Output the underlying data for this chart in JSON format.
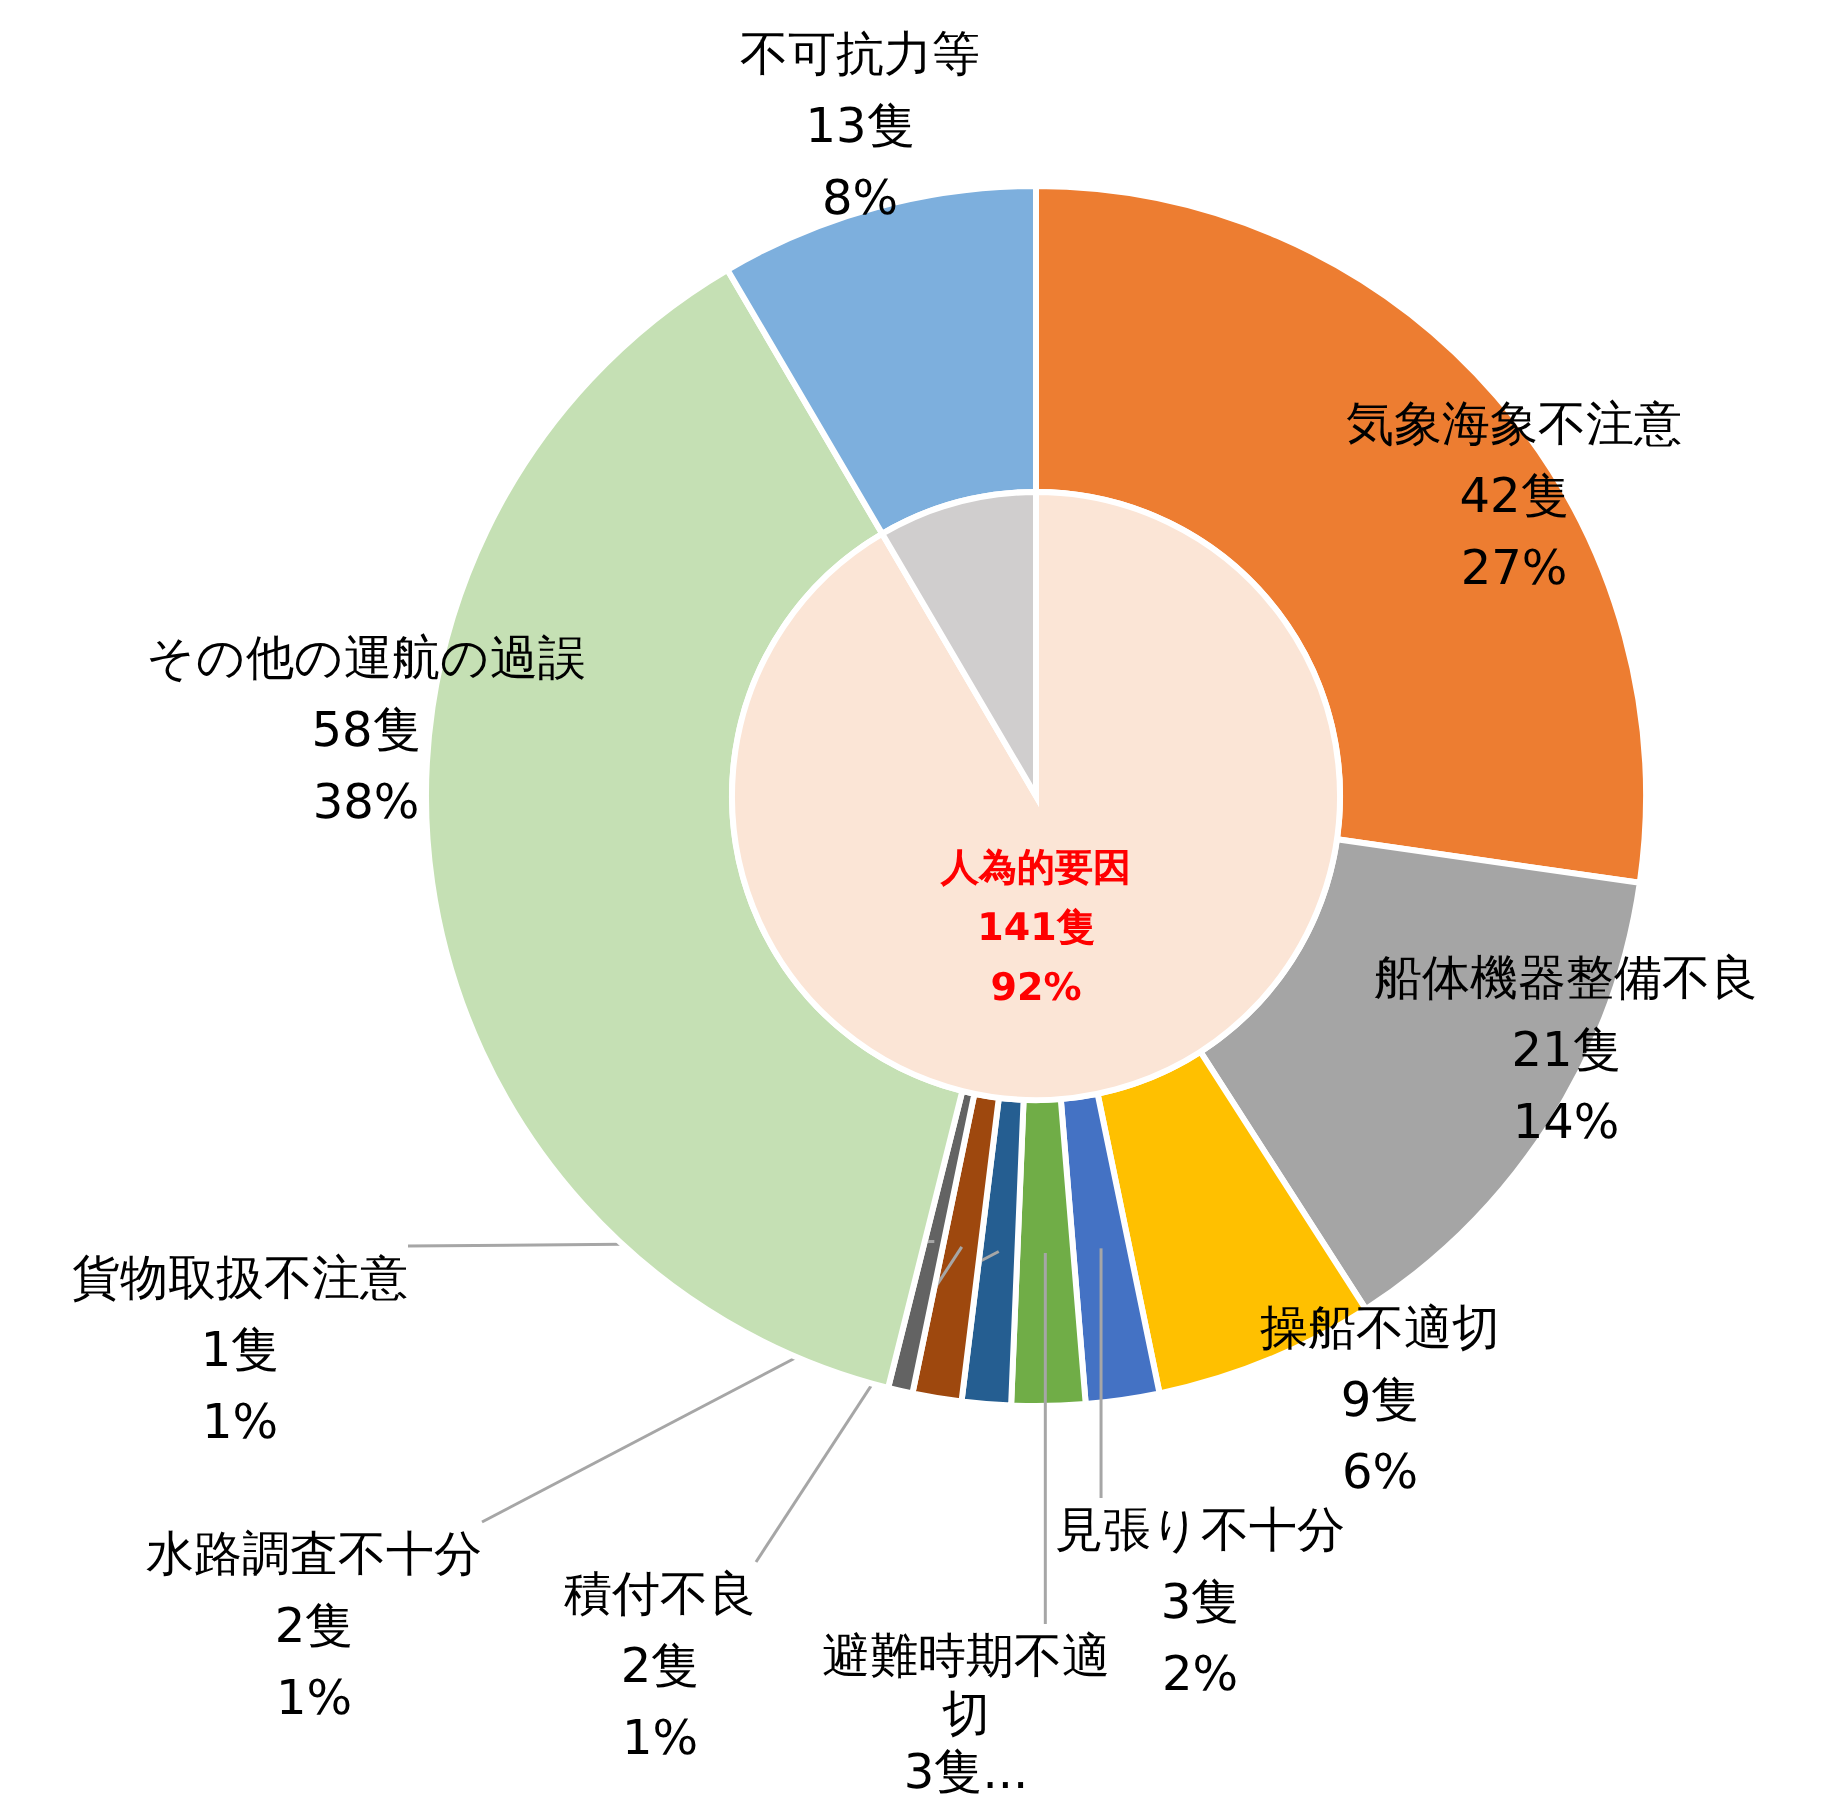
{
  "chart_data": [
    {
      "type": "donut",
      "categories": [
        "気象海象不注意",
        "船体機器整備不良",
        "操船不適切",
        "見張り不十分",
        "避難時期不適切",
        "水路調査不十分",
        "積付不良",
        "貨物取扱不注意",
        "その他の運航の過誤",
        "不可抗力等"
      ],
      "values": [
        42,
        21,
        9,
        3,
        3,
        2,
        2,
        1,
        58,
        13
      ],
      "value_labels": [
        "42隻\n27%",
        "21隻\n14%",
        "9隻\n6%",
        "3隻\n2%",
        "3隻...",
        "2隻\n1%",
        "2隻\n1%",
        "1隻\n1%",
        "58隻\n38%",
        "13隻\n8%"
      ],
      "colors": [
        "#ed7d31",
        "#a5a5a5",
        "#ffc000",
        "#4472c4",
        "#70ad47",
        "#255e91",
        "#9e480e",
        "#636363",
        "#c5e0b4",
        "#7dafdd"
      ]
    },
    {
      "type": "pie",
      "categories": [
        "人為的要因",
        null
      ],
      "values": [
        141,
        13
      ],
      "value_labels": [
        "141隻\n92%",
        null
      ],
      "colors": [
        "#fbe5d6",
        "#d0cece"
      ]
    }
  ]
}
